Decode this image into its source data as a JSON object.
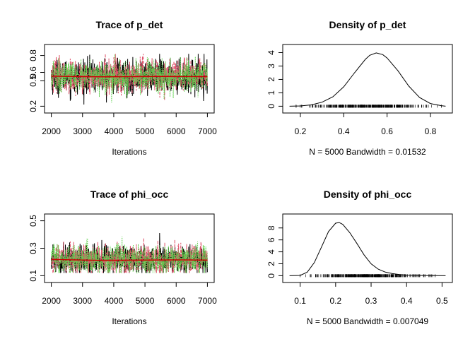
{
  "colors": {
    "black": "#000000",
    "red": "#df536b",
    "green": "#61d04f",
    "mean_line": "#cc0000"
  },
  "chart_data": [
    {
      "type": "line",
      "title": "Trace of p_det",
      "xlabel": "Iterations",
      "ylabel": "",
      "xlim": [
        2000,
        7000
      ],
      "ylim": [
        0.2,
        0.85
      ],
      "xticks": [
        "2000",
        "3000",
        "4000",
        "5000",
        "6000",
        "7000"
      ],
      "yticks": [
        "0.2",
        "0.5",
        "0.6",
        "0.8"
      ],
      "series": [
        {
          "color": "black",
          "mean": 0.55,
          "sd": 0.1,
          "min": 0.22,
          "max": 0.82
        },
        {
          "color": "red",
          "mean": 0.55,
          "sd": 0.1,
          "min": 0.24,
          "max": 0.82
        },
        {
          "color": "green",
          "mean": 0.55,
          "sd": 0.1,
          "min": 0.24,
          "max": 0.82
        }
      ],
      "running_mean": {
        "x": [
          2000,
          3500,
          4500,
          5500,
          7000
        ],
        "y": [
          0.555,
          0.548,
          0.55,
          0.552,
          0.55
        ]
      }
    },
    {
      "type": "line",
      "title": "Density of p_det",
      "xlabel": "N = 5000   Bandwidth = 0.01532",
      "ylabel": "",
      "xlim": [
        0.15,
        0.87
      ],
      "ylim": [
        0,
        4.1
      ],
      "xticks": [
        "0.2",
        "0.4",
        "0.6",
        "0.8"
      ],
      "yticks": [
        "0",
        "1",
        "2",
        "3",
        "4"
      ],
      "series": [
        {
          "x": [
            0.15,
            0.2,
            0.25,
            0.3,
            0.35,
            0.4,
            0.45,
            0.5,
            0.52,
            0.55,
            0.58,
            0.6,
            0.65,
            0.7,
            0.75,
            0.8,
            0.85,
            0.87
          ],
          "y": [
            0.0,
            0.02,
            0.1,
            0.3,
            0.7,
            1.45,
            2.5,
            3.5,
            3.8,
            3.98,
            3.85,
            3.6,
            2.65,
            1.5,
            0.65,
            0.2,
            0.04,
            0.0
          ]
        }
      ],
      "rug": {
        "min": 0.18,
        "max": 0.85
      }
    },
    {
      "type": "line",
      "title": "Trace of phi_occ",
      "xlabel": "Iterations",
      "ylabel": "",
      "xlim": [
        2000,
        7000
      ],
      "ylim": [
        0.1,
        0.5
      ],
      "xticks": [
        "2000",
        "3000",
        "4000",
        "5000",
        "6000",
        "7000"
      ],
      "yticks": [
        "0.1",
        "0.3",
        "0.5"
      ],
      "series": [
        {
          "color": "black",
          "mean": 0.22,
          "sd": 0.055,
          "min": 0.12,
          "max": 0.46
        },
        {
          "color": "red",
          "mean": 0.22,
          "sd": 0.055,
          "min": 0.12,
          "max": 0.46
        },
        {
          "color": "green",
          "mean": 0.22,
          "sd": 0.055,
          "min": 0.12,
          "max": 0.5
        }
      ],
      "running_mean": {
        "x": [
          2000,
          3500,
          5000,
          6000,
          7000
        ],
        "y": [
          0.218,
          0.212,
          0.214,
          0.215,
          0.214
        ]
      }
    },
    {
      "type": "line",
      "title": "Density of phi_occ",
      "xlabel": "N = 5000   Bandwidth = 0.007049",
      "ylabel": "",
      "xlim": [
        0.07,
        0.51
      ],
      "ylim": [
        0,
        9.2
      ],
      "xticks": [
        "0.1",
        "0.2",
        "0.3",
        "0.4",
        "0.5"
      ],
      "yticks": [
        "0",
        "2",
        "4",
        "6",
        "8"
      ],
      "series": [
        {
          "x": [
            0.07,
            0.1,
            0.12,
            0.14,
            0.16,
            0.18,
            0.2,
            0.21,
            0.22,
            0.24,
            0.26,
            0.28,
            0.3,
            0.32,
            0.34,
            0.36,
            0.38,
            0.4,
            0.45,
            0.51
          ],
          "y": [
            0.0,
            0.05,
            0.6,
            2.2,
            4.8,
            7.4,
            8.8,
            8.9,
            8.6,
            7.2,
            5.4,
            3.5,
            2.0,
            1.1,
            0.6,
            0.35,
            0.2,
            0.1,
            0.03,
            0.0
          ]
        }
      ],
      "rug": {
        "min": 0.1,
        "max": 0.48
      }
    }
  ]
}
